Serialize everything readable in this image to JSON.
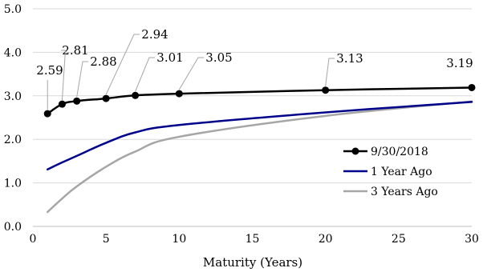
{
  "chart_data": {
    "type": "line",
    "xlabel": "Maturity (Years)",
    "ylabel": "",
    "xlim": [
      0,
      30
    ],
    "ylim": [
      0,
      5
    ],
    "xticks": [
      0,
      5,
      10,
      15,
      20,
      25,
      30
    ],
    "yticks": [
      0,
      1,
      2,
      3,
      4,
      5
    ],
    "ytick_format": 1,
    "grid": "horizontal",
    "legend_position": "bottom-right",
    "series": [
      {
        "name": "9/30/2018",
        "color": "#000000",
        "markers": true,
        "x": [
          1,
          2,
          3,
          5,
          7,
          10,
          20,
          30
        ],
        "values": [
          2.59,
          2.81,
          2.88,
          2.94,
          3.01,
          3.05,
          3.13,
          3.19
        ],
        "data_labels": [
          "2.59",
          "2.81",
          "2.88",
          "2.94",
          "3.01",
          "3.05",
          "3.13",
          "3.19"
        ]
      },
      {
        "name": "1 Year Ago",
        "color": "#00008b",
        "markers": false,
        "x": [
          1,
          2,
          3,
          5,
          7,
          10,
          20,
          30
        ],
        "values": [
          1.31,
          1.47,
          1.62,
          1.92,
          2.16,
          2.33,
          2.62,
          2.86
        ]
      },
      {
        "name": "3 Years Ago",
        "color": "#a6a6a6",
        "markers": false,
        "x": [
          1,
          2,
          3,
          5,
          7,
          10,
          20,
          30
        ],
        "values": [
          0.33,
          0.64,
          0.92,
          1.37,
          1.72,
          2.06,
          2.54,
          2.87
        ]
      }
    ]
  }
}
